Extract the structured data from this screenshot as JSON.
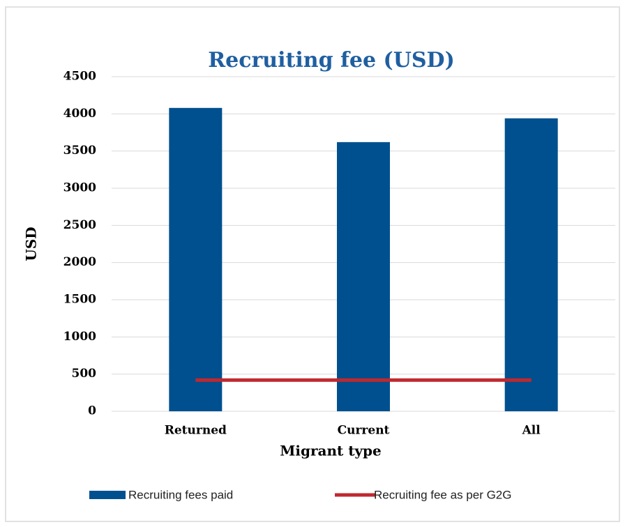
{
  "chart_data": {
    "type": "bar",
    "title": "Recruiting fee (USD)",
    "x_label": "Migrant type",
    "y_label": "USD",
    "categories": [
      "Returned",
      "Current",
      "All"
    ],
    "series": [
      {
        "name": "Recruiting fees paid",
        "type": "bar",
        "color": "#00508f",
        "values": [
          4080,
          3620,
          3940
        ]
      },
      {
        "name": "Recruiting fee as per G2G",
        "type": "line",
        "color": "#c0282f",
        "values": [
          420,
          420,
          420
        ]
      }
    ],
    "ylim": [
      0,
      4500
    ],
    "yticks": [
      0,
      500,
      1000,
      1500,
      2000,
      2500,
      3000,
      3500,
      4000,
      4500
    ],
    "grid": true,
    "legend": "bottom"
  }
}
